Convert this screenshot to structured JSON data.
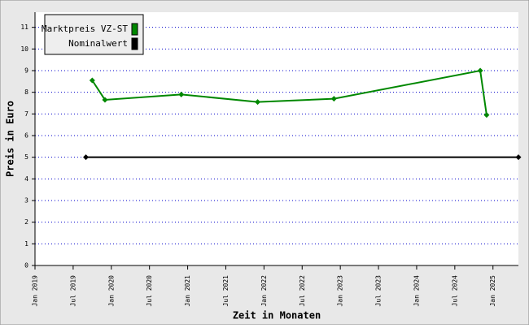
{
  "chart_data": {
    "type": "line",
    "x_label": "Zeit in Monaten",
    "y_label": "Preis in Euro",
    "xlim": [
      "2019-01",
      "2025-05"
    ],
    "ylim": [
      0,
      11.7
    ],
    "xticks": [
      {
        "value": "2019-01",
        "label": "Jan 2019"
      },
      {
        "value": "2019-07",
        "label": "Jul 2019"
      },
      {
        "value": "2020-01",
        "label": "Jan 2020"
      },
      {
        "value": "2020-07",
        "label": "Jul 2020"
      },
      {
        "value": "2021-01",
        "label": "Jan 2021"
      },
      {
        "value": "2021-07",
        "label": "Jul 2021"
      },
      {
        "value": "2022-01",
        "label": "Jan 2022"
      },
      {
        "value": "2022-07",
        "label": "Jul 2022"
      },
      {
        "value": "2023-01",
        "label": "Jan 2023"
      },
      {
        "value": "2023-07",
        "label": "Jul 2023"
      },
      {
        "value": "2024-01",
        "label": "Jan 2024"
      },
      {
        "value": "2024-07",
        "label": "Jul 2024"
      },
      {
        "value": "2025-01",
        "label": "Jan 2025"
      }
    ],
    "yticks": [
      0,
      1,
      2,
      3,
      4,
      5,
      6,
      7,
      8,
      9,
      10,
      11
    ],
    "grid": true,
    "legend": "upper left",
    "series": [
      {
        "name": "Marktpreis VZ-ST",
        "color": "#008800",
        "x": [
          "2019-10",
          "2019-12",
          "2020-12",
          "2021-12",
          "2022-12",
          "2024-11",
          "2024-12"
        ],
        "values": [
          8.55,
          7.65,
          7.9,
          7.55,
          7.7,
          9.0,
          6.95
        ]
      },
      {
        "name": "Nominalwert",
        "color": "#000000",
        "x": [
          "2019-09",
          "2025-05"
        ],
        "values": [
          5,
          5
        ]
      }
    ]
  }
}
